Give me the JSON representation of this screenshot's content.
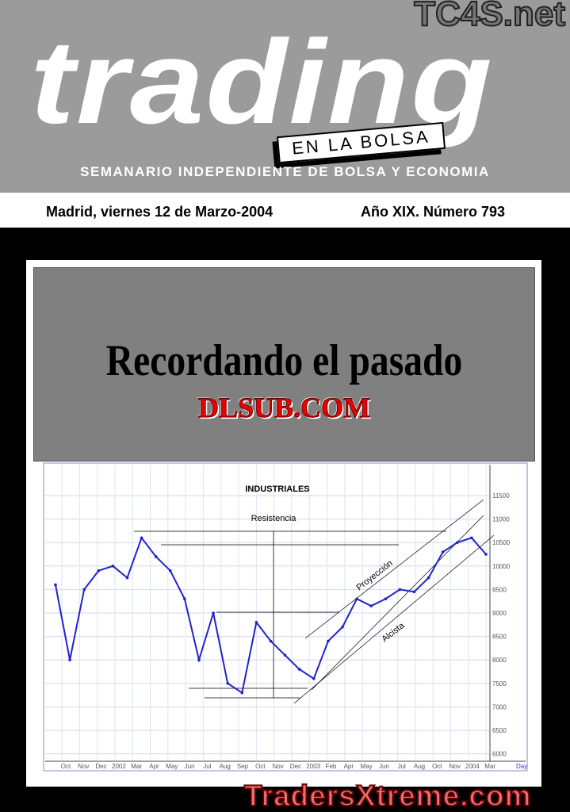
{
  "header": {
    "brand": "trading",
    "tagline": "EN LA BOLSA",
    "site_logo": "TC4S.net",
    "subtitle": "SEMANARIO INDEPENDIENTE DE BOLSA Y ECONOMIA"
  },
  "dateline": {
    "date": "Madrid, viernes 12 de Marzo-2004",
    "issue": "Año XIX. Número 793"
  },
  "cover": {
    "title": "Recordando el pasado",
    "logo": "DLSUB.COM"
  },
  "watermark": "TradersXtreme.com",
  "chart_data": {
    "type": "line",
    "title": "INDUSTRIALES",
    "annotations": [
      "Resistencia",
      "Proyección",
      "Alcista"
    ],
    "x_tick_labels": [
      "Oct",
      "Nov",
      "Dec",
      "2002",
      "Mar",
      "Apr",
      "May",
      "Jun",
      "Jul",
      "Aug",
      "Sep",
      "Oct",
      "Nov",
      "Dec",
      "2003",
      "Feb",
      "Apr",
      "May",
      "Jun",
      "Jul",
      "Aug",
      "Oct",
      "Nov",
      "2004",
      "Mar"
    ],
    "x_unit_label": "Day",
    "y_ticks": [
      11500,
      11000,
      10500,
      10000,
      9500,
      9000,
      8500,
      8000,
      7500,
      7000,
      6500,
      6000
    ],
    "ylim": [
      6000,
      11500
    ],
    "grid": true,
    "series_color": "#2222cc",
    "x": [
      "2001-09",
      "2001-10",
      "2001-11",
      "2001-12",
      "2002-01",
      "2002-02",
      "2002-03",
      "2002-04",
      "2002-05",
      "2002-06",
      "2002-07",
      "2002-08",
      "2002-09",
      "2002-10",
      "2002-11",
      "2002-12",
      "2003-01",
      "2003-02",
      "2003-03",
      "2003-04",
      "2003-05",
      "2003-06",
      "2003-07",
      "2003-08",
      "2003-09",
      "2003-10",
      "2003-11",
      "2003-12",
      "2004-01",
      "2004-02",
      "2004-03"
    ],
    "values": [
      9600,
      8000,
      9500,
      9900,
      10000,
      9750,
      10600,
      10200,
      9900,
      9300,
      8000,
      9000,
      7500,
      7300,
      8800,
      8400,
      8100,
      7800,
      7600,
      8400,
      8700,
      9300,
      9150,
      9300,
      9500,
      9450,
      9750,
      10300,
      10500,
      10600,
      10250
    ]
  }
}
